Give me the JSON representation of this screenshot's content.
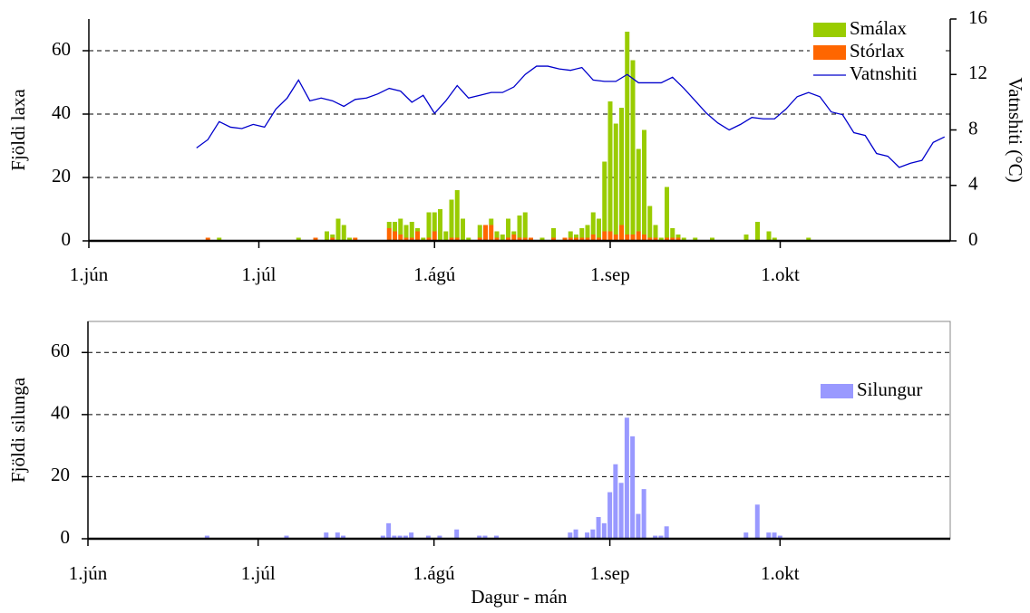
{
  "chart_data": [
    {
      "type": "bar",
      "stacked": true,
      "ylabel": "Fjöldi laxa",
      "y2label": "Vatnshiti (°C)",
      "xlim": [
        0,
        152
      ],
      "xticks": [
        {
          "value": 0,
          "label": "1.jún"
        },
        {
          "value": 30,
          "label": "1.júl"
        },
        {
          "value": 61,
          "label": "1.ágú"
        },
        {
          "value": 92,
          "label": "1.sep"
        },
        {
          "value": 122,
          "label": "1.okt"
        }
      ],
      "ylim": [
        0,
        70
      ],
      "yticks": [
        0,
        20,
        40,
        60
      ],
      "y2lim": [
        0,
        16
      ],
      "y2ticks": [
        0,
        4,
        8,
        12,
        16
      ],
      "grid": true,
      "legend": "upper right",
      "frame": false,
      "x": [
        21,
        23,
        37,
        40,
        42,
        43,
        44,
        45,
        46,
        47,
        53,
        54,
        55,
        56,
        57,
        58,
        59,
        60,
        61,
        62,
        63,
        64,
        65,
        66,
        67,
        69,
        70,
        71,
        72,
        73,
        74,
        75,
        76,
        77,
        78,
        80,
        82,
        84,
        85,
        86,
        87,
        88,
        89,
        90,
        91,
        92,
        93,
        94,
        95,
        96,
        97,
        98,
        99,
        100,
        101,
        102,
        103,
        104,
        105,
        107,
        110,
        116,
        118,
        120,
        121,
        127
      ],
      "series": [
        {
          "name": "Smálax",
          "color": "#99cc00",
          "values": [
            0,
            1,
            1,
            0,
            3,
            1,
            7,
            5,
            1,
            0,
            2,
            3,
            5,
            4,
            5,
            1,
            1,
            8,
            6,
            10,
            3,
            12,
            15,
            7,
            1,
            4,
            0,
            2,
            2,
            2,
            6,
            1,
            7,
            8,
            0,
            1,
            3,
            0,
            2,
            1,
            3,
            4,
            7,
            6,
            22,
            41,
            35,
            37,
            64,
            55,
            26,
            33,
            10,
            4,
            1,
            16,
            3,
            1,
            1,
            1,
            1,
            2,
            6,
            3,
            1,
            1
          ]
        },
        {
          "name": "Stórlax",
          "color": "#ff6600",
          "values": [
            1,
            0,
            0,
            1,
            0,
            1,
            0,
            0,
            0,
            1,
            4,
            3,
            2,
            1,
            1,
            3,
            0,
            1,
            3,
            0,
            0,
            1,
            1,
            0,
            0,
            1,
            5,
            5,
            1,
            0,
            1,
            2,
            1,
            1,
            1,
            0,
            1,
            1,
            1,
            1,
            1,
            1,
            2,
            1,
            3,
            3,
            2,
            5,
            2,
            2,
            3,
            2,
            1,
            1,
            0,
            1,
            1,
            1,
            0,
            0,
            0,
            0,
            0,
            0,
            0,
            0
          ]
        },
        {
          "name": "Vatnshiti",
          "color": "#0000cc",
          "type": "line",
          "axis": "y2",
          "x": [
            19,
            21,
            23,
            25,
            27,
            29,
            31,
            33,
            35,
            37,
            39,
            41,
            43,
            45,
            47,
            49,
            51,
            53,
            55,
            57,
            59,
            61,
            63,
            65,
            67,
            69,
            71,
            73,
            75,
            77,
            79,
            81,
            83,
            85,
            87,
            89,
            91,
            93,
            95,
            97,
            99,
            101,
            103,
            105,
            107,
            109,
            111,
            113,
            115,
            117,
            119,
            121,
            123,
            125,
            127,
            129,
            131,
            133,
            135,
            137,
            139,
            141,
            143,
            145,
            147,
            149,
            151
          ],
          "values": [
            6.7,
            7.3,
            8.6,
            8.2,
            8.1,
            8.4,
            8.2,
            9.5,
            10.3,
            11.6,
            10.1,
            10.3,
            10.1,
            9.7,
            10.2,
            10.3,
            10.6,
            11.0,
            10.8,
            10.0,
            10.5,
            9.2,
            10.1,
            11.2,
            10.3,
            10.5,
            10.7,
            10.7,
            11.1,
            12.0,
            12.6,
            12.6,
            12.4,
            12.3,
            12.5,
            11.6,
            11.5,
            11.5,
            12.0,
            11.4,
            11.4,
            11.4,
            11.8,
            11.0,
            10.1,
            9.2,
            8.5,
            8.0,
            8.4,
            8.9,
            8.8,
            8.8,
            9.5,
            10.4,
            10.7,
            10.4,
            9.3,
            9.1,
            7.8,
            7.6,
            6.3,
            6.1,
            5.3,
            5.6,
            5.8,
            7.1,
            7.5
          ]
        }
      ]
    },
    {
      "type": "bar",
      "stacked": false,
      "ylabel": "Fjöldi silunga",
      "xlabel": "Dagur - mán",
      "xlim": [
        0,
        152
      ],
      "xticks": [
        {
          "value": 0,
          "label": "1.jún"
        },
        {
          "value": 30,
          "label": "1.júl"
        },
        {
          "value": 61,
          "label": "1.ágú"
        },
        {
          "value": 92,
          "label": "1.sep"
        },
        {
          "value": 122,
          "label": "1.okt"
        }
      ],
      "ylim": [
        0,
        70
      ],
      "yticks": [
        0,
        20,
        40,
        60
      ],
      "grid": true,
      "legend": "right",
      "frame": true,
      "x": [
        21,
        35,
        42,
        44,
        45,
        52,
        53,
        54,
        55,
        56,
        57,
        60,
        62,
        65,
        69,
        70,
        72,
        85,
        86,
        88,
        89,
        90,
        91,
        92,
        93,
        94,
        95,
        96,
        97,
        98,
        100,
        101,
        102,
        116,
        118,
        120,
        121,
        122
      ],
      "series": [
        {
          "name": "Silungur",
          "color": "#9999ff",
          "values": [
            1,
            1,
            2,
            2,
            1,
            1,
            5,
            1,
            1,
            1,
            2,
            1,
            1,
            3,
            1,
            1,
            1,
            2,
            3,
            2,
            3,
            7,
            5,
            15,
            24,
            18,
            39,
            33,
            8,
            16,
            1,
            1,
            4,
            2,
            11,
            2,
            2,
            1
          ]
        }
      ]
    }
  ]
}
